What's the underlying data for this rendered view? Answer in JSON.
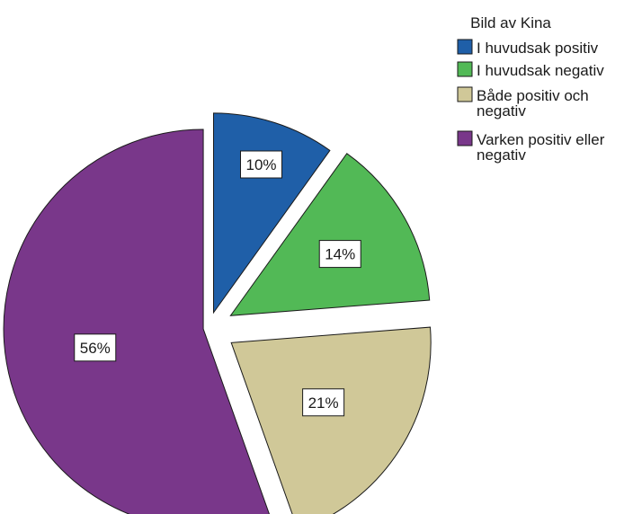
{
  "chart_data": {
    "type": "pie",
    "title": "",
    "legend_title": "Bild av Kina",
    "legend_position": "top-right",
    "exploded": true,
    "slices": [
      {
        "label": "I huvudsak positiv",
        "legend_lines": [
          "I huvudsak positiv"
        ],
        "value": 10,
        "display": "10%",
        "color": "#1f5fa8"
      },
      {
        "label": "I huvudsak negativ",
        "legend_lines": [
          "I huvudsak negativ"
        ],
        "value": 14,
        "display": "14%",
        "color": "#52b956"
      },
      {
        "label": "Både positiv och negativ",
        "legend_lines": [
          "Både positiv och",
          "negativ"
        ],
        "value": 21,
        "display": "21%",
        "color": "#d0c898"
      },
      {
        "label": "Varken positiv eller negativ",
        "legend_lines": [
          "Varken positiv eller",
          "negativ"
        ],
        "value": 56,
        "display": "56%",
        "color": "#79378a"
      }
    ]
  }
}
